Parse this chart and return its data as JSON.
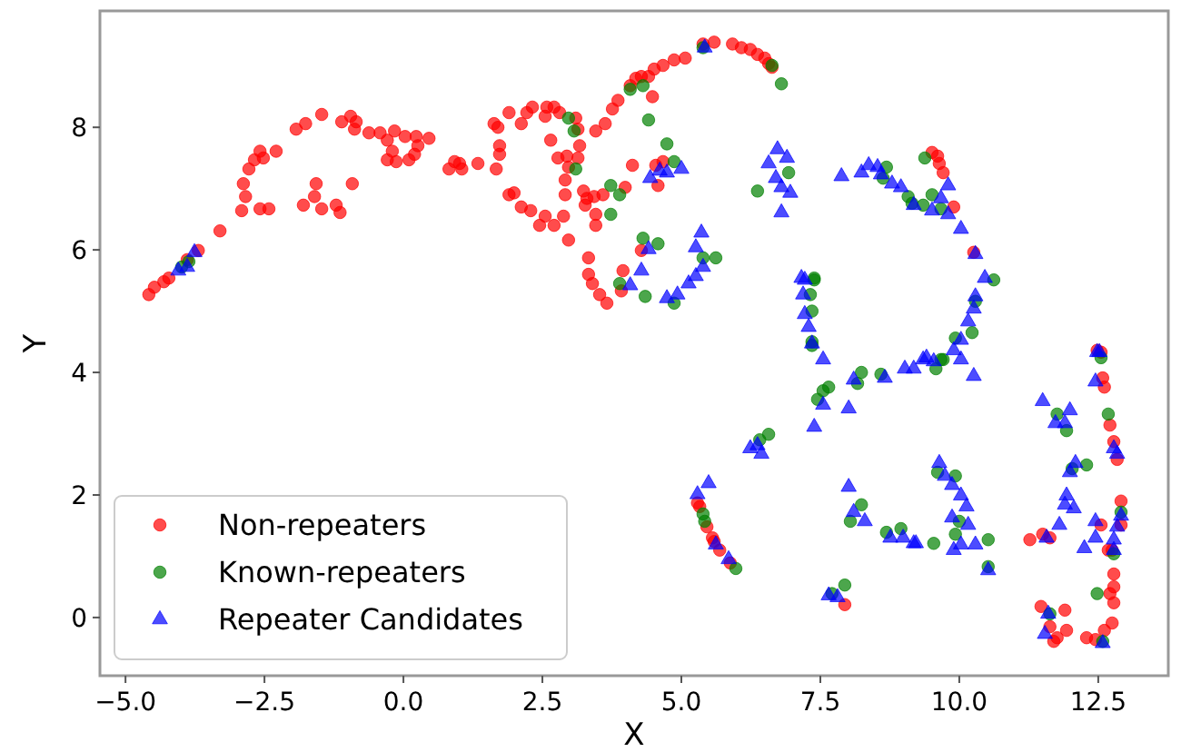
{
  "chart_data": {
    "type": "scatter",
    "xlabel": "X",
    "ylabel": "Y",
    "xlim": [
      -5.46,
      13.76
    ],
    "ylim": [
      -0.95,
      9.9
    ],
    "xticks": [
      {
        "value": -5,
        "label": "−5.0"
      },
      {
        "value": -2.5,
        "label": "−2.5"
      },
      {
        "value": 0,
        "label": "0.0"
      },
      {
        "value": 2.5,
        "label": "2.5"
      },
      {
        "value": 5,
        "label": "5.0"
      },
      {
        "value": 7.5,
        "label": "7.5"
      },
      {
        "value": 10,
        "label": "10.0"
      },
      {
        "value": 12.5,
        "label": "12.5"
      }
    ],
    "yticks": [
      0,
      2,
      4,
      6,
      8
    ],
    "grid": false,
    "legend": "bottom left",
    "series": [
      {
        "name": "Non-repeaters",
        "color": "#ff0000",
        "marker": "circle",
        "x": [
          -4.58,
          -4.48,
          -4.31,
          -4.22,
          -3.89,
          -3.69,
          -3.3,
          -2.91,
          -2.84,
          -2.88,
          -2.78,
          -2.68,
          -2.58,
          -2.52,
          -2.29,
          -2.58,
          -2.42,
          -1.93,
          -1.76,
          -1.47,
          -1.11,
          -0.95,
          -0.85,
          -0.88,
          -0.62,
          -0.42,
          -0.29,
          -0.16,
          -0.2,
          -0.29,
          -0.13,
          0.03,
          0.23,
          0.46,
          0.2,
          0.1,
          0.26,
          0.82,
          0.92,
          1.05,
          -1.57,
          -0.92,
          -1.8,
          -1.6,
          -1.47,
          -1.21,
          -1.14,
          1.01,
          1.34,
          1.67,
          1.73,
          1.73,
          1.63,
          1.7,
          1.9,
          2.12,
          2.22,
          2.32,
          2.58,
          2.71,
          2.81,
          2.55,
          3.1,
          3.14,
          3.17,
          3.14,
          2.94,
          2.78,
          2.65,
          2.91,
          2.97,
          2.91,
          1.9,
          1.99,
          2.12,
          2.29,
          2.55,
          2.45,
          2.71,
          2.88,
          2.97,
          3.24,
          3.3,
          3.43,
          3.59,
          3.27,
          3.46,
          3.46,
          3.33,
          3.33,
          3.4,
          3.53,
          3.66,
          3.95,
          3.92,
          3.99,
          4.12,
          4.58,
          4.67,
          4.54,
          4.28,
          3.46,
          3.63,
          3.76,
          3.86,
          4.08,
          4.18,
          4.28,
          4.41,
          4.48,
          4.51,
          4.67,
          4.87,
          5.07,
          5.39,
          5.59,
          5.92,
          6.08,
          6.24,
          6.37,
          6.5,
          6.57,
          6.63,
          9.51,
          9.61,
          9.64,
          9.71,
          9.9,
          10.26,
          12.48,
          5.29,
          5.33,
          5.46,
          5.56,
          5.59,
          5.69,
          5.88,
          7.94,
          12.55,
          12.58,
          12.61,
          12.71,
          12.78,
          12.84,
          12.91,
          12.55,
          12.91,
          12.75,
          12.78,
          12.78,
          12.71,
          12.78,
          12.75,
          12.61,
          12.45,
          12.29,
          11.93,
          11.9,
          11.76,
          11.7,
          11.63,
          11.47,
          11.27,
          11.5,
          11.63,
          12.68
        ],
        "values": [
          5.27,
          5.39,
          5.48,
          5.54,
          5.84,
          5.99,
          6.31,
          6.64,
          6.87,
          7.08,
          7.32,
          7.47,
          7.61,
          7.5,
          7.61,
          6.67,
          6.67,
          7.97,
          8.06,
          8.21,
          8.09,
          8.18,
          8.09,
          7.97,
          7.91,
          7.91,
          7.79,
          7.94,
          7.61,
          7.47,
          7.44,
          7.85,
          7.85,
          7.82,
          7.56,
          7.47,
          7.7,
          7.32,
          7.44,
          7.32,
          7.08,
          7.08,
          6.73,
          6.87,
          6.67,
          6.73,
          6.61,
          7.41,
          7.41,
          7.32,
          7.56,
          7.7,
          8.06,
          8.0,
          8.24,
          8.06,
          8.24,
          8.33,
          8.33,
          8.33,
          8.24,
          8.18,
          8.15,
          7.97,
          7.7,
          7.5,
          7.53,
          7.5,
          7.79,
          7.14,
          7.35,
          6.9,
          6.9,
          6.93,
          6.7,
          6.64,
          6.55,
          6.4,
          6.4,
          6.55,
          6.16,
          6.96,
          6.84,
          6.87,
          6.9,
          6.73,
          6.58,
          6.4,
          5.87,
          5.6,
          5.45,
          5.27,
          5.13,
          5.66,
          5.33,
          7.02,
          7.38,
          7.05,
          7.44,
          7.38,
          5.99,
          7.94,
          8.06,
          8.3,
          8.44,
          8.68,
          8.8,
          8.83,
          8.83,
          8.5,
          8.95,
          9.01,
          9.1,
          9.13,
          9.36,
          9.39,
          9.36,
          9.3,
          9.27,
          9.19,
          9.13,
          9.04,
          8.98,
          7.59,
          7.53,
          7.41,
          7.26,
          6.7,
          5.96,
          4.36,
          1.87,
          1.81,
          1.48,
          1.3,
          1.24,
          1.1,
          0.89,
          0.21,
          4.33,
          3.91,
          3.76,
          3.14,
          2.87,
          2.58,
          1.9,
          1.51,
          1.51,
          1.1,
          0.71,
          0.5,
          0.39,
          0.24,
          -0.09,
          -0.21,
          -0.36,
          -0.33,
          -0.21,
          0.12,
          -0.33,
          -0.39,
          -0.15,
          0.18,
          1.27,
          1.36,
          1.3,
          1.1
        ]
      },
      {
        "name": "Known-repeaters",
        "color": "#008000",
        "marker": "circle",
        "x": [
          -3.86,
          -3.99,
          5.39,
          6.63,
          6.8,
          4.08,
          4.31,
          4.41,
          2.97,
          3.07,
          3.1,
          4.74,
          4.87,
          3.73,
          3.89,
          3.73,
          4.31,
          4.58,
          5.39,
          5.62,
          3.89,
          4.35,
          4.87,
          6.37,
          6.93,
          7.39,
          7.35,
          7.35,
          9.38,
          8.69,
          8.63,
          9.08,
          9.15,
          9.35,
          9.51,
          9.67,
          10.62,
          10.29,
          10.23,
          9.93,
          9.71,
          7.39,
          7.32,
          7.35,
          8.24,
          8.17,
          8.59,
          7.65,
          7.45,
          7.55,
          6.57,
          6.41,
          5.39,
          5.42,
          5.98,
          8.24,
          8.04,
          8.95,
          8.69,
          7.94,
          7.71,
          9.58,
          9.67,
          9.61,
          9.93,
          9.93,
          10.0,
          9.54,
          10.52,
          10.52,
          11.76,
          11.93,
          12.29,
          12.03,
          12.55,
          12.68,
          12.91,
          12.78,
          12.48,
          12.58,
          11.63
        ],
        "values": [
          5.81,
          5.72,
          9.3,
          9.01,
          8.71,
          8.62,
          8.68,
          8.12,
          8.15,
          7.94,
          7.32,
          7.73,
          7.44,
          7.05,
          6.9,
          6.58,
          6.19,
          6.1,
          5.87,
          5.87,
          5.45,
          5.24,
          5.13,
          6.96,
          7.26,
          5.54,
          5.0,
          4.5,
          7.5,
          7.35,
          7.17,
          6.87,
          6.76,
          6.73,
          6.9,
          6.67,
          5.51,
          5.16,
          4.65,
          4.56,
          4.21,
          5.51,
          5.27,
          4.44,
          4.0,
          3.82,
          3.97,
          3.76,
          3.56,
          3.7,
          2.99,
          2.9,
          1.69,
          1.57,
          0.8,
          1.84,
          1.57,
          1.45,
          1.39,
          0.53,
          0.39,
          4.06,
          4.21,
          2.37,
          2.31,
          1.36,
          1.57,
          1.21,
          1.27,
          0.83,
          3.32,
          3.05,
          2.49,
          2.43,
          4.24,
          3.32,
          1.72,
          1.04,
          0.39,
          -0.39,
          0.06
        ]
      },
      {
        "name": "Repeater Candidates",
        "color": "#0000ff",
        "marker": "triangle",
        "x": [
          -4.05,
          -3.89,
          -3.76,
          4.44,
          4.61,
          4.74,
          5.0,
          4.41,
          4.28,
          5.36,
          5.26,
          5.39,
          5.26,
          5.13,
          4.93,
          4.74,
          4.08,
          5.42,
          6.73,
          6.57,
          6.9,
          6.7,
          6.8,
          6.96,
          6.8,
          7.16,
          7.22,
          7.19,
          7.22,
          7.29,
          7.35,
          7.55,
          7.88,
          8.24,
          8.37,
          8.53,
          8.59,
          8.79,
          8.95,
          9.18,
          9.51,
          9.67,
          9.8,
          9.8,
          10.03,
          10.29,
          10.46,
          10.29,
          10.26,
          10.16,
          10.03,
          9.9,
          9.35,
          9.54,
          12.48,
          9.02,
          8.66,
          8.1,
          8.01,
          7.55,
          7.39,
          6.24,
          6.44,
          6.37,
          8.01,
          8.1,
          8.3,
          8.76,
          8.99,
          9.18,
          5.49,
          5.29,
          5.62,
          5.85,
          7.65,
          7.81,
          9.41,
          10.03,
          10.26,
          9.18,
          9.64,
          9.74,
          9.87,
          10.03,
          10.13,
          9.87,
          10.16,
          9.9,
          10.03,
          10.29,
          9.22,
          10.52,
          11.5,
          11.73,
          11.9,
          11.99,
          11.99,
          12.09,
          11.93,
          11.9,
          12.06,
          11.8,
          11.57,
          12.25,
          12.45,
          12.45,
          12.78,
          12.84,
          12.91,
          12.84,
          12.78,
          12.45,
          12.52,
          12.78,
          11.54,
          11.6,
          12.58
        ],
        "values": [
          5.66,
          5.72,
          5.96,
          7.17,
          7.29,
          7.26,
          7.32,
          6.01,
          5.66,
          6.28,
          6.04,
          5.72,
          5.57,
          5.45,
          5.27,
          5.21,
          5.42,
          9.3,
          7.64,
          7.41,
          7.5,
          7.17,
          7.02,
          6.93,
          6.61,
          5.54,
          5.51,
          5.27,
          4.95,
          4.74,
          4.47,
          4.21,
          7.2,
          7.26,
          7.38,
          7.35,
          7.23,
          7.08,
          7.02,
          6.73,
          6.64,
          6.84,
          7.05,
          6.58,
          6.34,
          5.93,
          5.54,
          5.24,
          5.04,
          4.83,
          4.53,
          4.36,
          4.21,
          4.18,
          4.33,
          4.06,
          3.91,
          3.88,
          3.41,
          3.47,
          3.11,
          2.76,
          2.67,
          2.81,
          2.13,
          1.72,
          1.57,
          1.3,
          1.3,
          1.21,
          2.19,
          2.01,
          1.19,
          0.95,
          0.36,
          0.33,
          4.24,
          4.21,
          3.94,
          4.06,
          2.52,
          2.31,
          2.16,
          1.99,
          1.81,
          1.63,
          1.51,
          1.1,
          1.19,
          1.19,
          1.21,
          0.77,
          3.53,
          3.17,
          3.17,
          3.38,
          2.37,
          2.52,
          1.99,
          1.84,
          1.78,
          1.51,
          1.3,
          1.13,
          1.3,
          1.57,
          1.27,
          1.48,
          1.66,
          2.67,
          2.76,
          3.85,
          4.33,
          1.1,
          -0.27,
          0.06,
          -0.42
        ]
      }
    ]
  }
}
